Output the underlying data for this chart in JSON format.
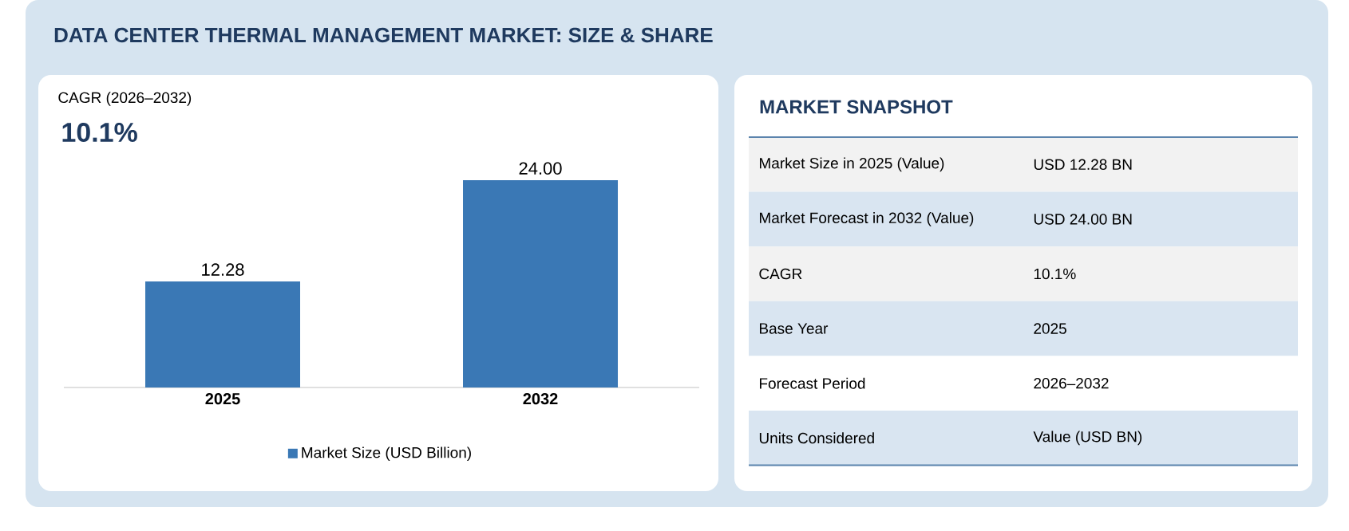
{
  "chart_data": [
    {
      "type": "bar",
      "title": "DATA CENTER THERMAL MANAGEMENT MARKET: SIZE & SHARE",
      "annotations": [
        "CAGR (2026–2032)",
        "10.1%"
      ],
      "categories": [
        "2025",
        "2032"
      ],
      "series": [
        {
          "name": "Market Size (USD Billion)",
          "color": "#3a78b5",
          "values": [
            12.28,
            24.0
          ],
          "value_labels": [
            "12.28",
            "24.00"
          ]
        }
      ],
      "legend": "bottom"
    },
    {
      "type": "other",
      "title": "MARKET SNAPSHOT",
      "annotations": [
        "Market Size in 2025 (Value)",
        "USD 12.28 BN",
        "Market Forecast in 2032 (Value)",
        "USD 24.00 BN",
        "CAGR",
        "10.1%",
        "Base Year",
        "2025",
        "Forecast Period",
        "2026–2032",
        "Units Considered",
        "Value (USD BN)"
      ]
    }
  ]
}
